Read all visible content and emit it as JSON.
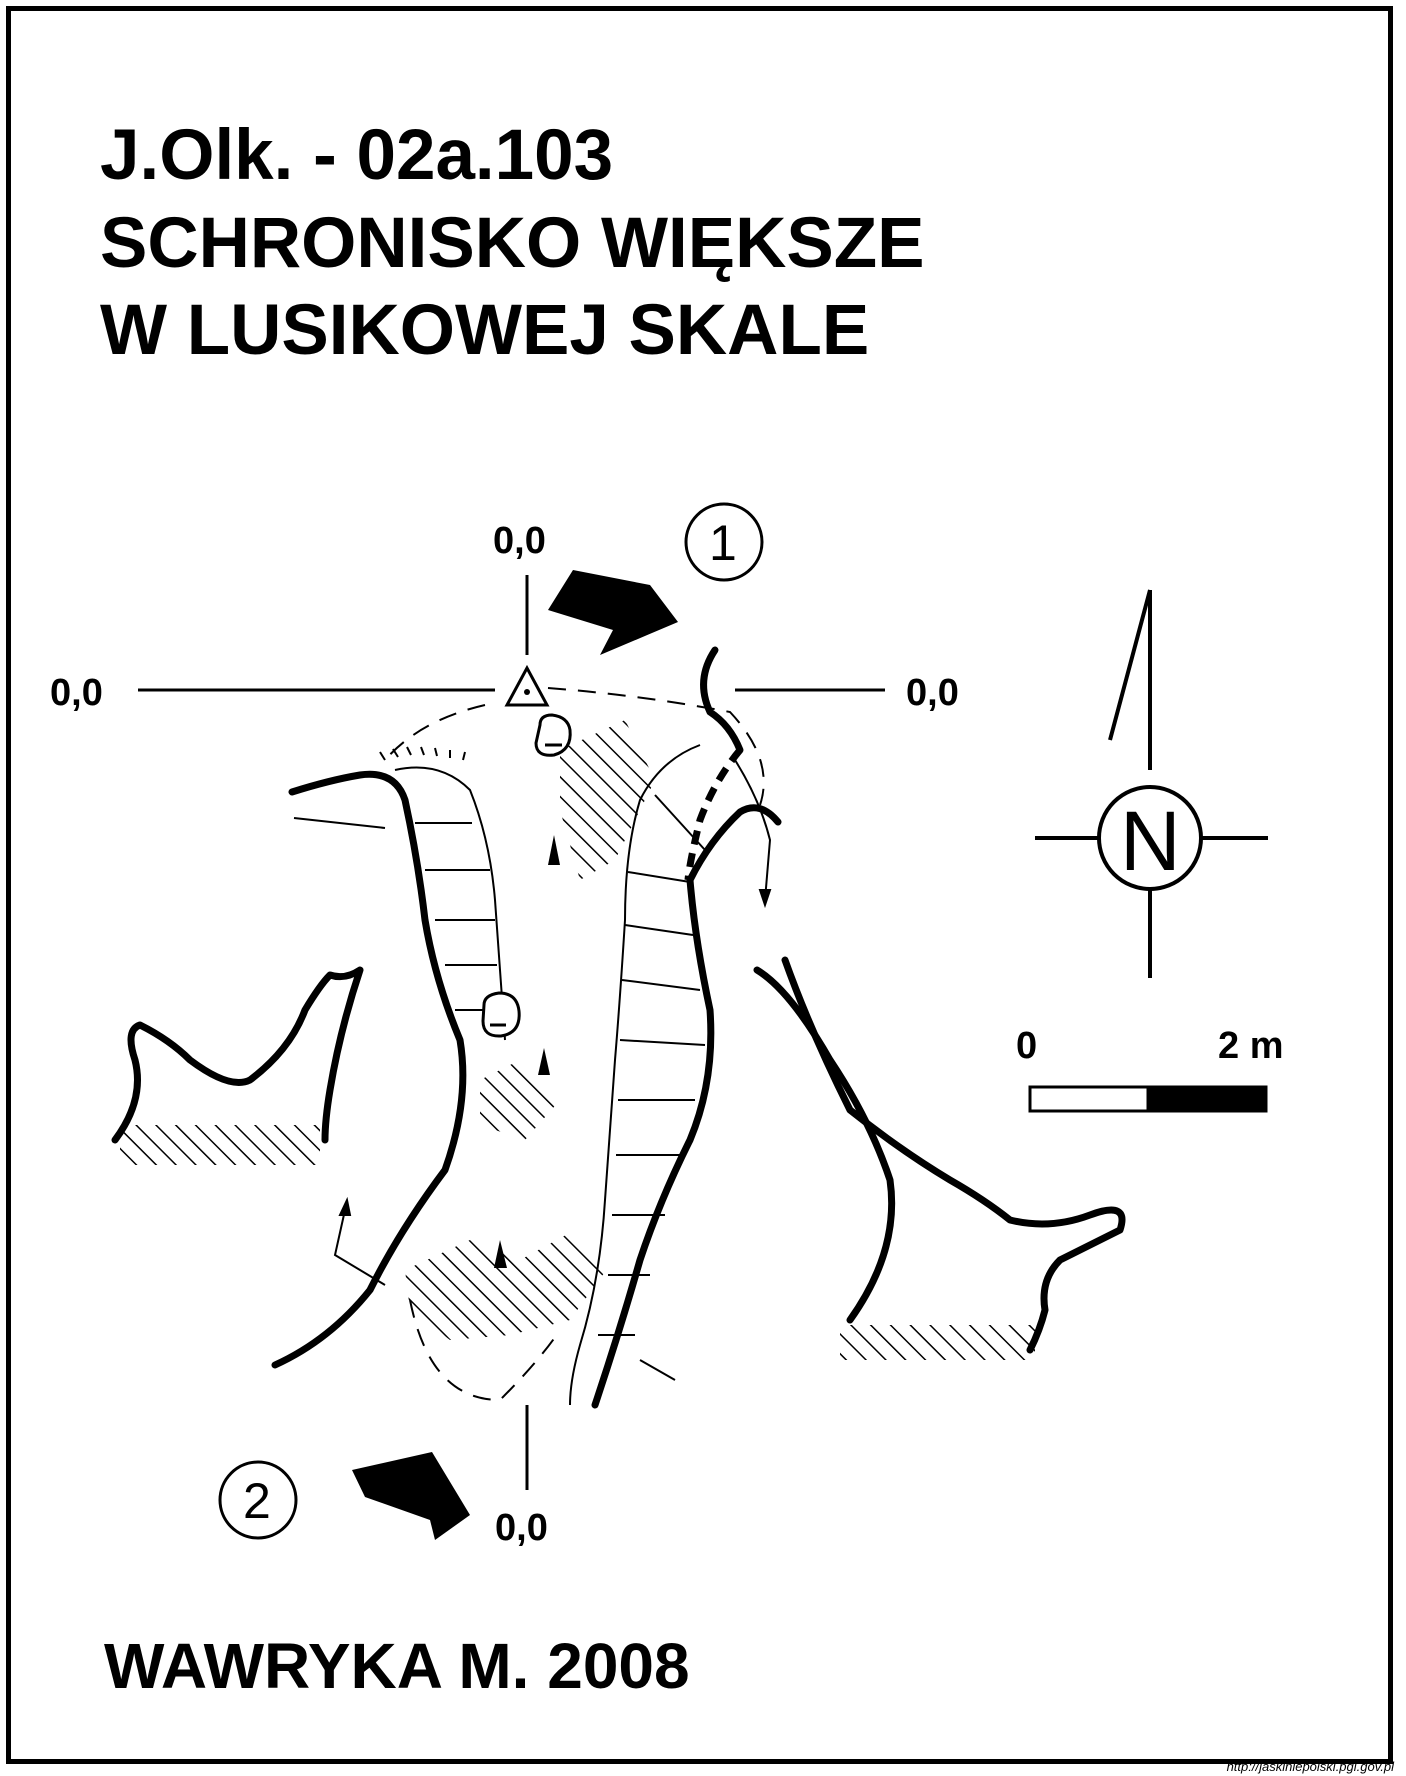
{
  "title": {
    "line1": "J.Olk. - 02a.103",
    "line2": "SCHRONISKO WIĘKSZE",
    "line3": "W LUSIKOWEJ SKALE"
  },
  "datum_labels": {
    "top": "0,0",
    "left": "0,0",
    "right": "0,0",
    "bottom": "0,0"
  },
  "section_markers": {
    "one": "1",
    "two": "2"
  },
  "north": {
    "letter": "N"
  },
  "scale_bar": {
    "start": "0",
    "end": "2 m"
  },
  "author": "WAWRYKA M. 2008",
  "footer": "http://jaskiniepolski.pgi.gov.pl",
  "icons": [
    "survey-station-icon",
    "north-arrow-icon",
    "section-arrow-icon",
    "boulder-icon"
  ],
  "colors": {
    "ink": "#000000",
    "paper": "#ffffff"
  }
}
